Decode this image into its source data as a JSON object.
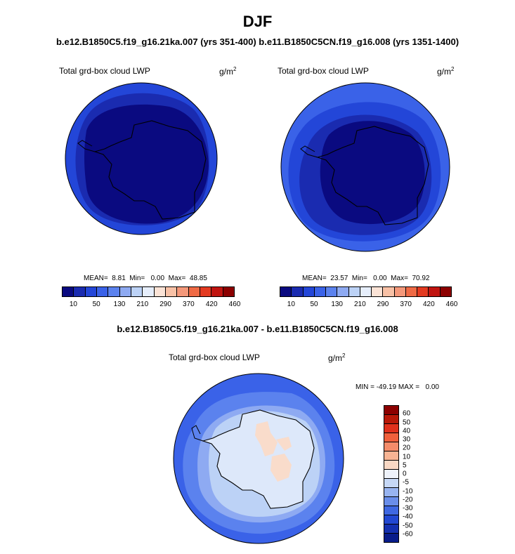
{
  "page": {
    "title": "DJF",
    "subtitle_top": "b.e12.B1850C5.f19_g16.21ka.007 (yrs 351-400) b.e11.B1850C5CN.f19_g16.008 (yrs 1351-1400)",
    "subtitle_diff": "b.e12.B1850C5.f19_g16.21ka.007 - b.e11.B1850C5CN.f19_g16.008"
  },
  "panels": [
    {
      "variable": "Total grd-box cloud LWP",
      "units": "g/m",
      "units_sup": "2",
      "stats_text": "MEAN=  8.81  Min=   0.00  Max=  48.85"
    },
    {
      "variable": "Total grd-box cloud LWP",
      "units": "g/m",
      "units_sup": "2",
      "stats_text": "MEAN=  23.57  Min=   0.00  Max=  70.92"
    },
    {
      "variable": "Total grd-box cloud LWP",
      "units": "g/m",
      "units_sup": "2",
      "stats_text": "MIN = -49.19 MAX =   0.00"
    }
  ],
  "colorbar_abs": {
    "colors": [
      "#0a0a80",
      "#1a2bb0",
      "#2346d8",
      "#3a62e8",
      "#5b82ee",
      "#8eaaf2",
      "#bcd2f6",
      "#e6eefb",
      "#fbe3d6",
      "#f8c1a6",
      "#f4987a",
      "#ef6a45",
      "#e33a20",
      "#c01410",
      "#8c0000"
    ],
    "tick_labels": [
      "10",
      "50",
      "130",
      "210",
      "290",
      "370",
      "420",
      "460"
    ]
  },
  "colorbar_diff": {
    "colors": [
      "#8c0000",
      "#b81808",
      "#e0301c",
      "#f0603c",
      "#f48c6a",
      "#f7b494",
      "#f9d8c4",
      "#eef2fa",
      "#c6d8f6",
      "#98b4f0",
      "#6a8eea",
      "#3f68e2",
      "#2248d2",
      "#1430b0",
      "#081c8a"
    ],
    "tick_labels": [
      "60",
      "50",
      "40",
      "30",
      "20",
      "10",
      "5",
      "0",
      "-5",
      "-10",
      "-20",
      "-30",
      "-40",
      "-50",
      "-60"
    ]
  },
  "map_colors": {
    "deep": "#0a0a80",
    "dark": "#1a2bb0",
    "mid": "#2346d8",
    "bright": "#3a62e8",
    "light": "#5b82ee",
    "pale": "#8eaaf2",
    "paler": "#bcd2f6",
    "ice": "#dde8fa",
    "salmon": "#f9dccb"
  }
}
